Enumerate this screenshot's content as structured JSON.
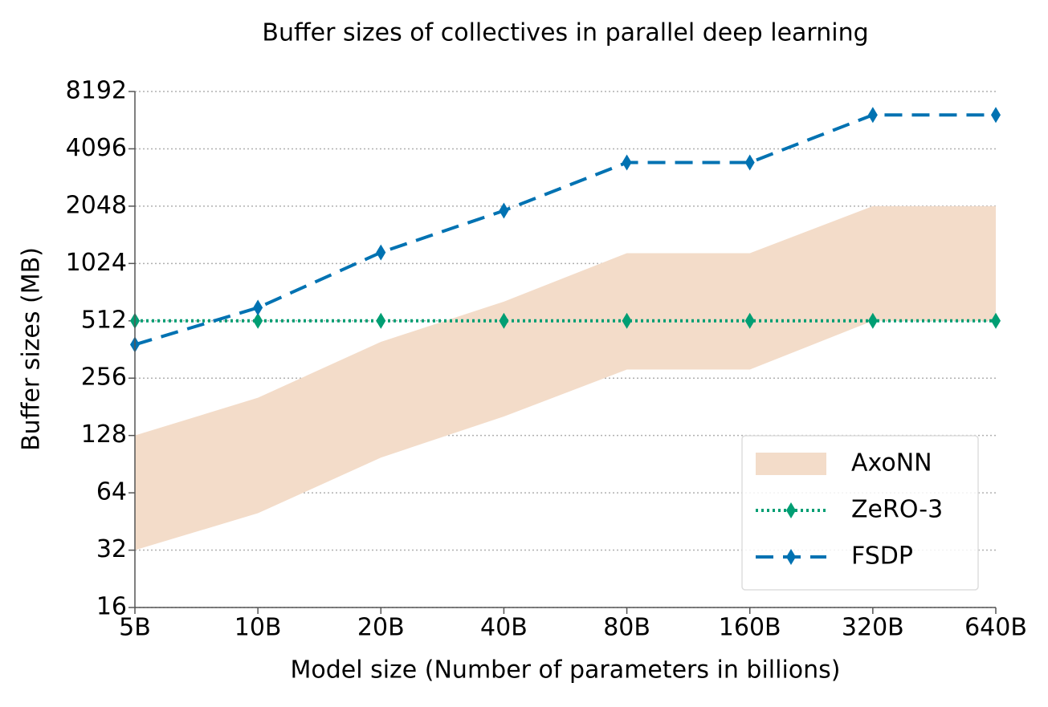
{
  "chart_data": {
    "type": "line",
    "title": "Buffer sizes of collectives in parallel deep learning",
    "x_label": "Model size (Number of parameters in billions)",
    "y_label": "Buffer sizes (MB)",
    "categories": [
      "5B",
      "10B",
      "20B",
      "40B",
      "80B",
      "160B",
      "320B",
      "640B"
    ],
    "ylim": [
      16,
      8192
    ],
    "yticks": [
      16,
      32,
      64,
      128,
      256,
      512,
      1024,
      2048,
      4096,
      8192
    ],
    "y_scale": "log2",
    "grid": true,
    "legend": "lower right",
    "series": [
      {
        "name": "AxoNN",
        "kind": "band",
        "color": "#f3dcc9",
        "lower": [
          32,
          50,
          98,
          161,
          284,
          284,
          512,
          512
        ],
        "values": [
          128,
          202,
          397,
          646,
          1160,
          1160,
          2048,
          2048
        ]
      },
      {
        "name": "ZeRO-3",
        "kind": "line",
        "style": "dotted",
        "marker": "diamond",
        "color": "#009e73",
        "values": [
          512,
          512,
          512,
          512,
          512,
          512,
          512,
          512
        ]
      },
      {
        "name": "FSDP",
        "kind": "line",
        "style": "dashed",
        "marker": "diamond",
        "color": "#0072b2",
        "values": [
          384,
          600,
          1170,
          1940,
          3470,
          3470,
          6170,
          6170
        ]
      }
    ]
  }
}
